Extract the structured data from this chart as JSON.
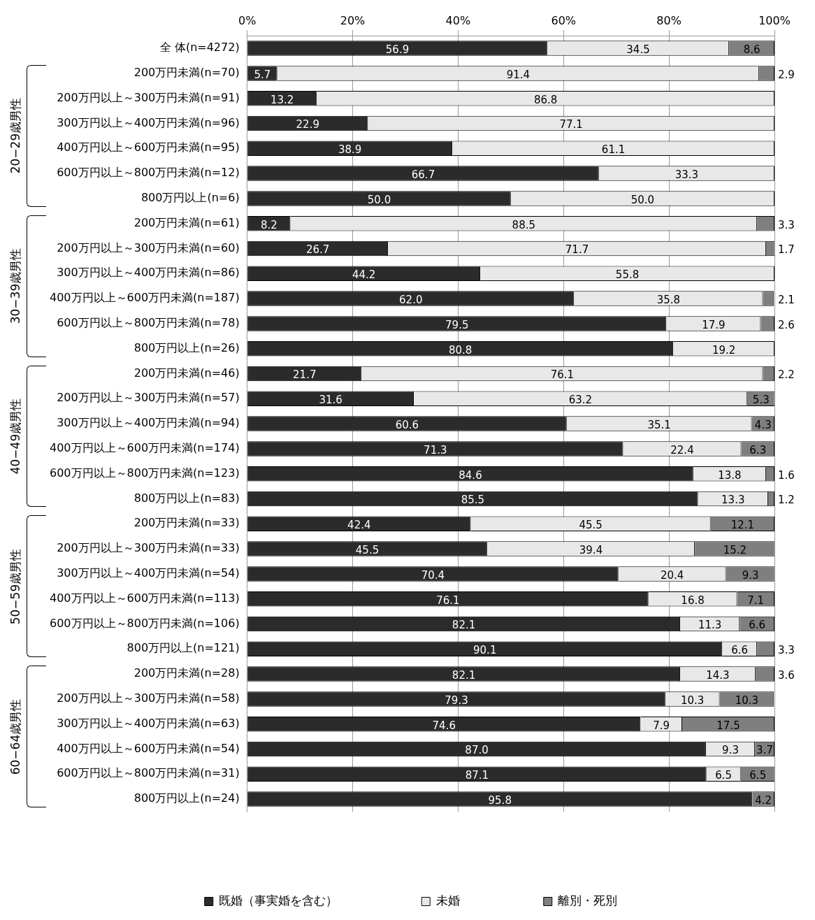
{
  "chart_data": {
    "type": "bar",
    "orientation": "horizontal",
    "stacked": true,
    "categories": [
      "全 体(n=4272)",
      "200万円未満(n=70)",
      "200万円以上～300万円未満(n=91)",
      "300万円以上～400万円未満(n=96)",
      "400万円以上～600万円未満(n=95)",
      "600万円以上～800万円未満(n=12)",
      "800万円以上(n=6)",
      "200万円未満(n=61)",
      "200万円以上～300万円未満(n=60)",
      "300万円以上～400万円未満(n=86)",
      "400万円以上～600万円未満(n=187)",
      "600万円以上～800万円未満(n=78)",
      "800万円以上(n=26)",
      "200万円未満(n=46)",
      "200万円以上～300万円未満(n=57)",
      "300万円以上～400万円未満(n=94)",
      "400万円以上～600万円未満(n=174)",
      "600万円以上～800万円未満(n=123)",
      "800万円以上(n=83)",
      "200万円未満(n=33)",
      "200万円以上～300万円未満(n=33)",
      "300万円以上～400万円未満(n=54)",
      "400万円以上～600万円未満(n=113)",
      "600万円以上～800万円未満(n=106)",
      "800万円以上(n=121)",
      "200万円未満(n=28)",
      "200万円以上～300万円未満(n=58)",
      "300万円以上～400万円未満(n=63)",
      "400万円以上～600万円未満(n=54)",
      "600万円以上～800万円未満(n=31)",
      "800万円以上(n=24)"
    ],
    "series": [
      {
        "name": "既婚（事実婚を含む）",
        "color": "#2b2b2b",
        "values": [
          56.9,
          5.7,
          13.2,
          22.9,
          38.9,
          66.7,
          50.0,
          8.2,
          26.7,
          44.2,
          62.0,
          79.5,
          80.8,
          21.7,
          31.6,
          60.6,
          71.3,
          84.6,
          85.5,
          42.4,
          45.5,
          70.4,
          76.1,
          82.1,
          90.1,
          82.1,
          79.3,
          74.6,
          87.0,
          87.1,
          95.8
        ],
        "value_labels": [
          "56.9",
          "5.7",
          "13.2",
          "22.9",
          "38.9",
          "66.7",
          "50.0",
          "8.2",
          "26.7",
          "44.2",
          "62.0",
          "79.5",
          "80.8",
          "21.7",
          "31.6",
          "60.6",
          "71.3",
          "84.6",
          "85.5",
          "42.4",
          "45.5",
          "70.4",
          "76.1",
          "82.1",
          "90.1",
          "82.1",
          "79.3",
          "74.6",
          "87.0",
          "87.1",
          "95.8"
        ]
      },
      {
        "name": "未婚",
        "color": "#e8e8e8",
        "values": [
          34.5,
          91.4,
          86.8,
          77.1,
          61.1,
          33.3,
          50.0,
          88.5,
          71.7,
          55.8,
          35.8,
          17.9,
          19.2,
          76.1,
          63.2,
          35.1,
          22.4,
          13.8,
          13.3,
          45.5,
          39.4,
          20.4,
          16.8,
          11.3,
          6.6,
          14.3,
          10.3,
          7.9,
          9.3,
          6.5,
          null
        ],
        "value_labels": [
          "34.5",
          "91.4",
          "86.8",
          "77.1",
          "61.1",
          "33.3",
          "50.0",
          "88.5",
          "71.7",
          "55.8",
          "35.8",
          "17.9",
          "19.2",
          "76.1",
          "63.2",
          "35.1",
          "22.4",
          "13.8",
          "13.3",
          "45.5",
          "39.4",
          "20.4",
          "16.8",
          "11.3",
          "6.6",
          "14.3",
          "10.3",
          "7.9",
          "9.3",
          "6.5",
          null
        ]
      },
      {
        "name": "離別・死別",
        "color": "#7f7f7f",
        "values": [
          8.6,
          2.9,
          null,
          null,
          null,
          null,
          null,
          3.3,
          1.7,
          null,
          2.1,
          2.6,
          null,
          2.2,
          5.3,
          4.3,
          6.3,
          1.6,
          1.2,
          12.1,
          15.2,
          9.3,
          7.1,
          6.6,
          3.3,
          3.6,
          10.3,
          17.5,
          3.7,
          6.5,
          4.2
        ],
        "value_labels": [
          "8.6",
          "2.9",
          null,
          null,
          null,
          null,
          null,
          "3.3",
          "1.7",
          null,
          "2.1",
          "2.6",
          null,
          "2.2",
          "5.3",
          "4.3",
          "6.3",
          "1.6",
          "1.2",
          "12.1",
          "15.2",
          "9.3",
          "7.1",
          "6.6",
          "3.3",
          "3.6",
          "10.3",
          "17.5",
          "3.7",
          "6.5",
          "4.2"
        ]
      }
    ],
    "xlim": [
      0,
      100
    ],
    "xticks": [
      {
        "value": 0,
        "label": "0%"
      },
      {
        "value": 20,
        "label": "20%"
      },
      {
        "value": 40,
        "label": "40%"
      },
      {
        "value": 60,
        "label": "60%"
      },
      {
        "value": 80,
        "label": "80%"
      },
      {
        "value": 100,
        "label": "100%"
      }
    ],
    "grid": "x",
    "legend": "bottom",
    "annotations": [
      "20−29歳男性",
      "30−39歳男性",
      "40−49歳男性",
      "50−59歳男性",
      "60−64歳男性"
    ]
  }
}
